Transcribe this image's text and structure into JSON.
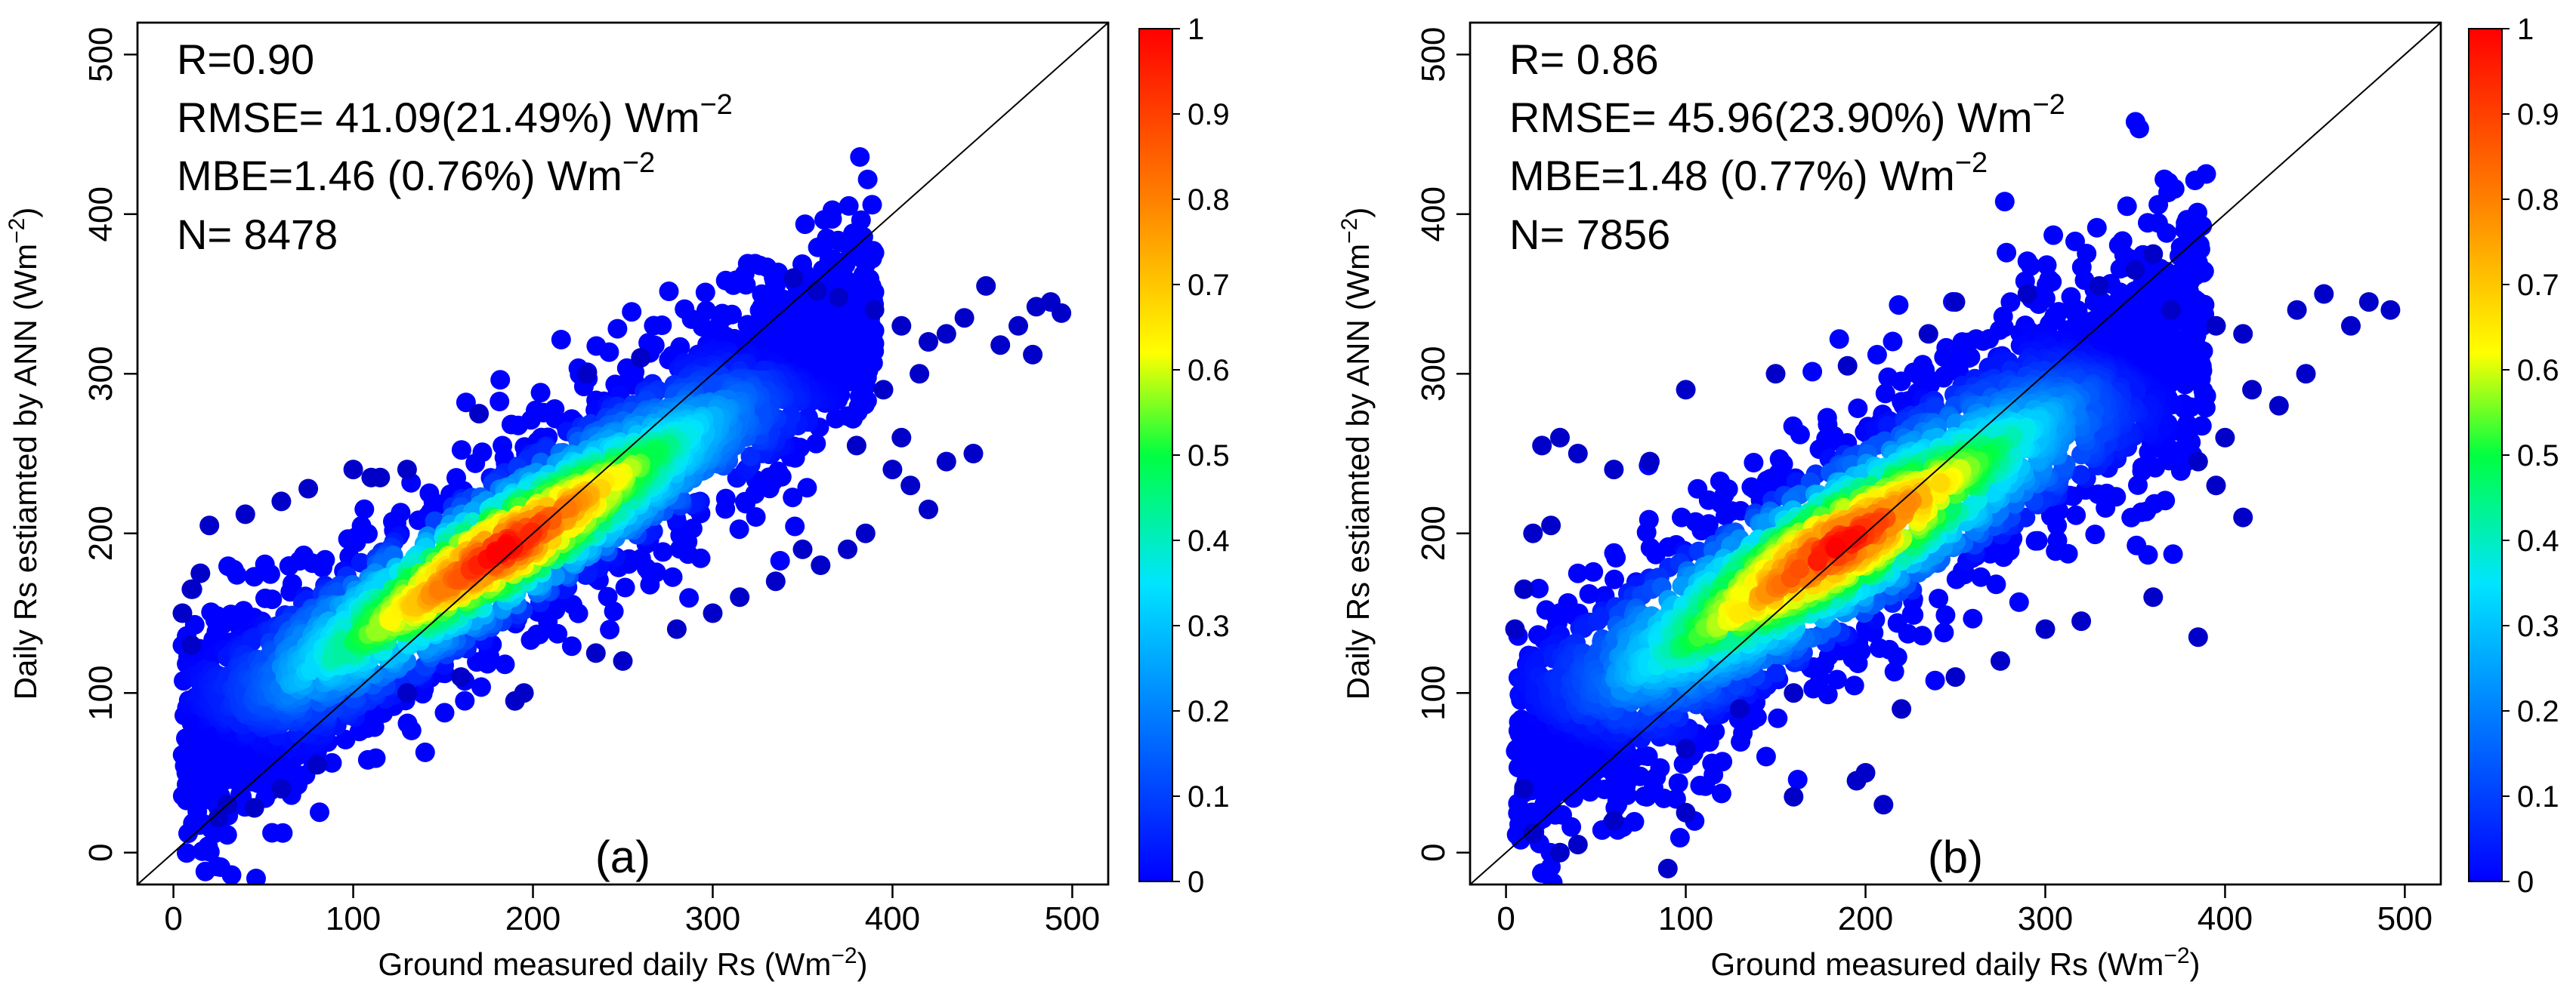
{
  "figure": {
    "description_label": "Scatter density plots of ANN-estimated vs ground-measured daily Rs"
  },
  "chart_data": [
    {
      "type": "scatter",
      "panel_label": "(a)",
      "xlabel": "Ground measured daily Rs (Wm",
      "xlabel_unit_sup": "−2",
      "xlabel_close": ")",
      "ylabel": "Daily Rs estiamted by ANN (Wm",
      "ylabel_unit_sup": "−2",
      "ylabel_close": ")",
      "xlim": [
        -20,
        520
      ],
      "ylim": [
        -20,
        520
      ],
      "xticks": [
        0,
        100,
        200,
        300,
        400,
        500
      ],
      "yticks": [
        0,
        100,
        200,
        300,
        400,
        500
      ],
      "reference_line": "1:1",
      "stats": {
        "r": "R=0.90",
        "rmse": "RMSE= 41.09(21.49%) Wm",
        "rmse_sup": "−2",
        "mbe": "MBE=1.46 (0.76%)  Wm",
        "mbe_sup": "−2",
        "n": "N= 8478"
      },
      "cloud": {
        "center_x": 195,
        "center_y": 195,
        "slope": 0.72,
        "intercept": 58,
        "spread": 32,
        "dense_center": [
          185,
          190
        ]
      },
      "outliers": [
        [
          345,
          360
        ],
        [
          358,
          352
        ],
        [
          370,
          348
        ],
        [
          390,
          340
        ],
        [
          405,
          330
        ],
        [
          420,
          320
        ],
        [
          430,
          325
        ],
        [
          440,
          335
        ],
        [
          452,
          355
        ],
        [
          460,
          318
        ],
        [
          470,
          330
        ],
        [
          480,
          342
        ],
        [
          488,
          345
        ],
        [
          494,
          338
        ],
        [
          478,
          312
        ],
        [
          415,
          300
        ],
        [
          395,
          290
        ],
        [
          380,
          255
        ],
        [
          400,
          240
        ],
        [
          410,
          230
        ],
        [
          430,
          245
        ],
        [
          445,
          250
        ],
        [
          420,
          215
        ],
        [
          405,
          260
        ],
        [
          385,
          200
        ],
        [
          375,
          190
        ],
        [
          360,
          180
        ],
        [
          350,
          190
        ],
        [
          335,
          170
        ],
        [
          315,
          160
        ],
        [
          300,
          150
        ],
        [
          280,
          140
        ],
        [
          250,
          120
        ],
        [
          235,
          125
        ],
        [
          195,
          100
        ],
        [
          190,
          95
        ],
        [
          160,
          110
        ],
        [
          130,
          100
        ],
        [
          115,
          235
        ],
        [
          100,
          240
        ],
        [
          75,
          228
        ],
        [
          60,
          220
        ],
        [
          40,
          212
        ],
        [
          20,
          205
        ],
        [
          15,
          175
        ],
        [
          10,
          165
        ],
        [
          5,
          150
        ],
        [
          10,
          130
        ],
        [
          30,
          30
        ],
        [
          25,
          22
        ],
        [
          45,
          28
        ],
        [
          60,
          40
        ],
        [
          80,
          55
        ],
        [
          110,
          235
        ],
        [
          130,
          240
        ],
        [
          170,
          275
        ],
        [
          230,
          300
        ],
        [
          260,
          310
        ]
      ],
      "colorbar": {
        "min": 0,
        "max": 1,
        "ticks": [
          0,
          0.1,
          0.2,
          0.3,
          0.4,
          0.5,
          0.6,
          0.7,
          0.8,
          0.9,
          1
        ],
        "tick_labels": [
          "0",
          "0.1",
          "0.2",
          "0.3",
          "0.4",
          "0.5",
          "0.6",
          "0.7",
          "0.8",
          "0.9",
          "1"
        ]
      }
    },
    {
      "type": "scatter",
      "panel_label": "(b)",
      "xlabel": "Ground measured daily Rs (Wm",
      "xlabel_unit_sup": "−2",
      "xlabel_close": ")",
      "ylabel": "Daily Rs estiamted by ANN (Wm",
      "ylabel_unit_sup": "−2",
      "ylabel_close": ")",
      "xlim": [
        -20,
        520
      ],
      "ylim": [
        -20,
        520
      ],
      "xticks": [
        0,
        100,
        200,
        300,
        400,
        500
      ],
      "yticks": [
        0,
        100,
        200,
        300,
        400,
        500
      ],
      "reference_line": "1:1",
      "stats": {
        "r": "R= 0.86",
        "rmse": "RMSE= 45.96(23.90%) Wm",
        "rmse_sup": "−2",
        "mbe": "MBE=1.48 (0.77%)  Wm",
        "mbe_sup": "−2",
        "n": "N= 7856"
      },
      "cloud": {
        "center_x": 195,
        "center_y": 195,
        "slope": 0.72,
        "intercept": 58,
        "spread": 38,
        "dense_center": [
          180,
          195
        ]
      },
      "outliers": [
        [
          360,
          375
        ],
        [
          350,
          365
        ],
        [
          330,
          355
        ],
        [
          370,
          340
        ],
        [
          395,
          330
        ],
        [
          410,
          325
        ],
        [
          440,
          340
        ],
        [
          455,
          350
        ],
        [
          480,
          345
        ],
        [
          492,
          340
        ],
        [
          470,
          330
        ],
        [
          445,
          300
        ],
        [
          430,
          280
        ],
        [
          415,
          290
        ],
        [
          400,
          260
        ],
        [
          385,
          245
        ],
        [
          395,
          230
        ],
        [
          410,
          210
        ],
        [
          360,
          160
        ],
        [
          385,
          135
        ],
        [
          320,
          145
        ],
        [
          300,
          140
        ],
        [
          275,
          120
        ],
        [
          250,
          110
        ],
        [
          220,
          90
        ],
        [
          200,
          50
        ],
        [
          210,
          30
        ],
        [
          195,
          45
        ],
        [
          160,
          35
        ],
        [
          100,
          25
        ],
        [
          90,
          -10
        ],
        [
          60,
          20
        ],
        [
          40,
          5
        ],
        [
          30,
          0
        ],
        [
          15,
          12
        ],
        [
          10,
          40
        ],
        [
          20,
          255
        ],
        [
          30,
          260
        ],
        [
          40,
          250
        ],
        [
          25,
          205
        ],
        [
          15,
          200
        ],
        [
          10,
          165
        ],
        [
          5,
          140
        ],
        [
          60,
          240
        ],
        [
          80,
          245
        ],
        [
          100,
          290
        ],
        [
          150,
          300
        ],
        [
          190,
          305
        ],
        [
          235,
          325
        ],
        [
          250,
          345
        ],
        [
          290,
          350
        ],
        [
          100,
          65
        ],
        [
          130,
          90
        ],
        [
          160,
          100
        ]
      ],
      "colorbar": {
        "min": 0,
        "max": 1,
        "ticks": [
          0,
          0.1,
          0.2,
          0.3,
          0.4,
          0.5,
          0.6,
          0.7,
          0.8,
          0.9,
          1
        ],
        "tick_labels": [
          "0",
          "0.1",
          "0.2",
          "0.3",
          "0.4",
          "0.5",
          "0.6",
          "0.7",
          "0.8",
          "0.9",
          "1"
        ]
      }
    }
  ]
}
